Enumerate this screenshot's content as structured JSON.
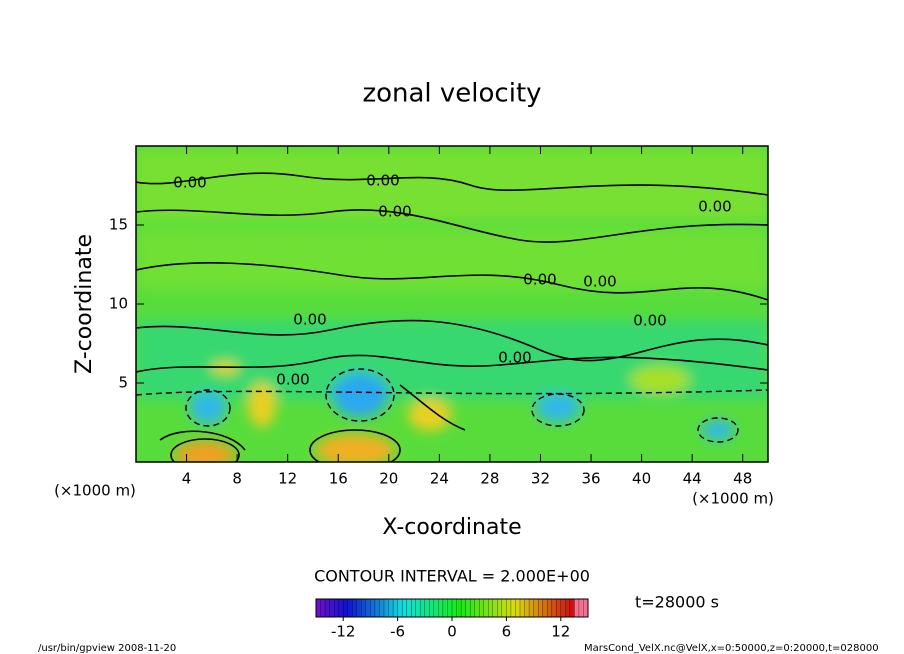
{
  "chart_data": {
    "type": "contour",
    "title": "zonal velocity",
    "x_label": "X-coordinate",
    "y_label": "Z-coordinate",
    "x_unit": "(×1000 m)",
    "y_unit": "(×1000 m)",
    "xlim": [
      0,
      50
    ],
    "xticks": [
      4,
      8,
      12,
      16,
      20,
      24,
      28,
      32,
      36,
      40,
      44,
      48
    ],
    "ylim": [
      0,
      20
    ],
    "yticks": [
      5,
      10,
      15
    ],
    "contour_labels": [
      "0.00",
      "0.00",
      "0.00",
      "0.00",
      "0.00",
      "0.00",
      "0.00",
      "0.00",
      "0.00",
      "0.00"
    ],
    "contour_interval": "CONTOUR INTERVAL = 2.000E+00",
    "time_label": "t=28000 s",
    "colorbar": {
      "clim": [
        -15,
        15
      ],
      "ticks": [
        -12,
        -6,
        0,
        6,
        12
      ]
    },
    "footer_left": "/usr/bin/gpview  2008-11-20",
    "footer_right": "MarsCond_VelX.nc@VelX,x=0:50000,z=0:20000,t=028000"
  }
}
